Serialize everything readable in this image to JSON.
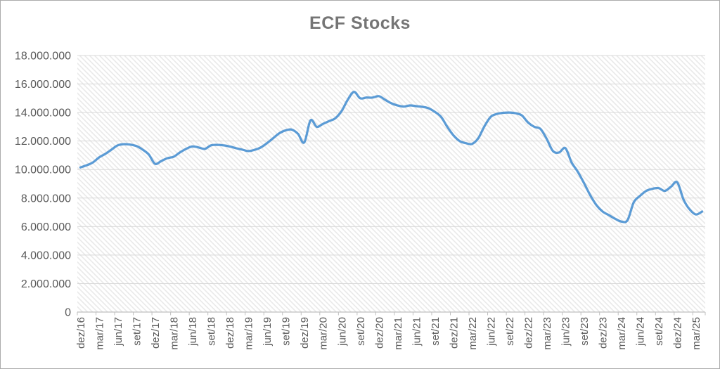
{
  "window": {
    "title": "ECF Stocks"
  },
  "chart_data": {
    "type": "line",
    "title": "ECF Stocks",
    "legend": "none",
    "grid": "horizontal",
    "smoothed": true,
    "categories": [
      "dez/16",
      "jan/17",
      "fev/17",
      "mar/17",
      "abr/17",
      "mai/17",
      "jun/17",
      "jul/17",
      "ago/17",
      "set/17",
      "out/17",
      "nov/17",
      "dez/17",
      "jan/18",
      "fev/18",
      "mar/18",
      "abr/18",
      "mai/18",
      "jun/18",
      "jul/18",
      "ago/18",
      "set/18",
      "out/18",
      "nov/18",
      "dez/18",
      "jan/19",
      "fev/19",
      "mar/19",
      "abr/19",
      "mai/19",
      "jun/19",
      "jul/19",
      "ago/19",
      "set/19",
      "out/19",
      "nov/19",
      "dez/19",
      "jan/20",
      "fev/20",
      "mar/20",
      "abr/20",
      "mai/20",
      "jun/20",
      "jul/20",
      "ago/20",
      "set/20",
      "out/20",
      "nov/20",
      "dez/20",
      "jan/21",
      "fev/21",
      "mar/21",
      "abr/21",
      "mai/21",
      "jun/21",
      "jul/21",
      "ago/21",
      "set/21",
      "out/21",
      "nov/21",
      "dez/21",
      "jan/22",
      "fev/22",
      "mar/22",
      "abr/22",
      "mai/22",
      "jun/22",
      "jul/22",
      "ago/22",
      "set/22",
      "out/22",
      "nov/22",
      "dez/22",
      "jan/23",
      "fev/23",
      "mar/23",
      "abr/23",
      "mai/23",
      "jun/23",
      "jul/23",
      "ago/23",
      "set/23",
      "out/23",
      "nov/23",
      "dez/23",
      "jan/24",
      "fev/24",
      "mar/24",
      "abr/24",
      "mai/24",
      "jun/24",
      "jul/24",
      "ago/24",
      "set/24",
      "out/24",
      "nov/24",
      "dez/24",
      "jan/25",
      "fev/25",
      "mar/25",
      "abr/25"
    ],
    "series": [
      {
        "name": "ECF Stocks",
        "values": [
          10150000,
          10300000,
          10500000,
          10850000,
          11100000,
          11400000,
          11700000,
          11780000,
          11750000,
          11650000,
          11400000,
          11050000,
          10400000,
          10600000,
          10800000,
          10900000,
          11200000,
          11450000,
          11620000,
          11550000,
          11450000,
          11700000,
          11730000,
          11700000,
          11620000,
          11500000,
          11400000,
          11300000,
          11380000,
          11550000,
          11850000,
          12200000,
          12550000,
          12750000,
          12800000,
          12500000,
          11900000,
          13450000,
          13000000,
          13200000,
          13400000,
          13600000,
          14100000,
          14900000,
          15450000,
          15000000,
          15050000,
          15050000,
          15150000,
          14900000,
          14650000,
          14500000,
          14420000,
          14500000,
          14450000,
          14400000,
          14300000,
          14050000,
          13700000,
          13000000,
          12400000,
          12000000,
          11850000,
          11800000,
          12200000,
          13050000,
          13700000,
          13900000,
          13980000,
          14000000,
          13950000,
          13800000,
          13300000,
          13000000,
          12850000,
          12150000,
          11300000,
          11200000,
          11500000,
          10500000,
          9850000,
          9050000,
          8200000,
          7500000,
          7050000,
          6800000,
          6550000,
          6350000,
          6450000,
          7700000,
          8150000,
          8500000,
          8650000,
          8700000,
          8500000,
          8800000,
          9100000,
          7900000,
          7200000,
          6850000,
          7050000
        ]
      }
    ],
    "x_tick_label_every": 3,
    "x_tick_labels": [
      "dez/16",
      "mar/17",
      "jun/17",
      "set/17",
      "dez/17",
      "mar/18",
      "jun/18",
      "set/18",
      "dez/18",
      "mar/19",
      "jun/19",
      "set/19",
      "dez/19",
      "mar/20",
      "jun/20",
      "set/20",
      "dez/20",
      "mar/21",
      "jun/21",
      "set/21",
      "dez/21",
      "mar/22",
      "jun/22",
      "set/22",
      "dez/22",
      "mar/23",
      "jun/23",
      "set/23",
      "dez/23",
      "mar/24",
      "jun/24",
      "set/24",
      "dez/24",
      "mar/25"
    ],
    "y_axis": {
      "min": 0,
      "max": 18000000,
      "step": 2000000,
      "tick_labels": [
        "0",
        "2.000.000",
        "4.000.000",
        "6.000.000",
        "8.000.000",
        "10.000.000",
        "12.000.000",
        "14.000.000",
        "16.000.000",
        "18.000.000"
      ]
    },
    "colors": {
      "line": "#5B9BD5",
      "title": "#757575",
      "axis_text": "#595959",
      "gridline": "#D9D9D9",
      "axis_line": "#BFBFBF",
      "plot_hatch": "#E9E9E9",
      "border": "#ABABAB",
      "background": "#FFFFFF"
    }
  }
}
